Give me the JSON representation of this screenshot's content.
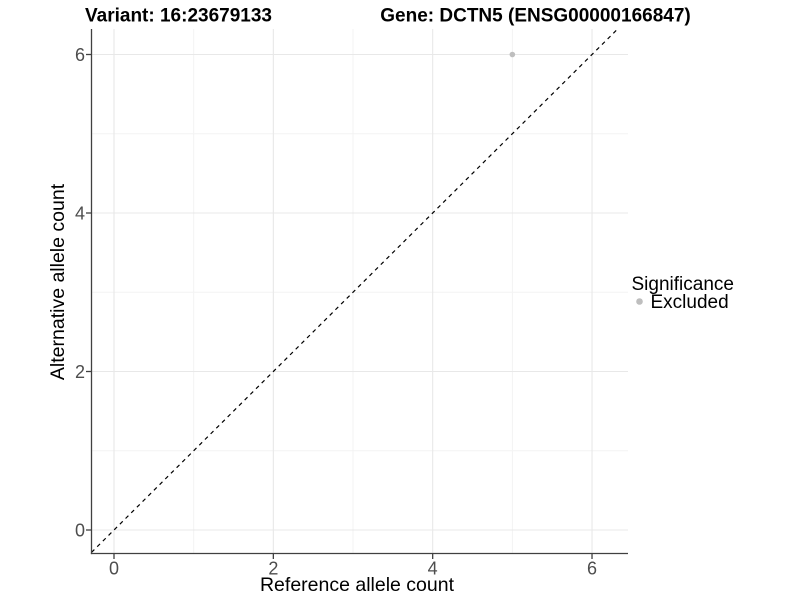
{
  "page": {
    "background": "#ffffff"
  },
  "chart_data": {
    "type": "scatter",
    "title_left": "Variant: 16:23679133",
    "title_right": "Gene: DCTN5 (ENSG00000166847)",
    "xlabel": "Reference allele count",
    "ylabel": "Alternative allele count",
    "xlim": [
      -0.282,
      6.452
    ],
    "ylim": [
      -0.297,
      6.322
    ],
    "x_ticks": [
      0,
      2,
      4,
      6
    ],
    "y_ticks": [
      0,
      2,
      4,
      6
    ],
    "x_minor_ticks": [
      1,
      3,
      5
    ],
    "y_minor_ticks": [
      1,
      3,
      5
    ],
    "grid": "major+minor",
    "points": [
      {
        "x": 5,
        "y": 6,
        "series": "Excluded"
      }
    ],
    "reference_line": {
      "slope": 1,
      "intercept": 0,
      "style": "dashed",
      "color": "#000000"
    },
    "legend": {
      "title": "Significance",
      "position": "right",
      "entries": [
        {
          "label": "Excluded",
          "color": "#bebebe"
        }
      ]
    },
    "colors": {
      "point": "#bebebe",
      "grid_major": "#e8e8e8",
      "grid_minor": "#f3f3f3",
      "axis": "#404040",
      "tick_label": "#4d4d4d"
    }
  }
}
